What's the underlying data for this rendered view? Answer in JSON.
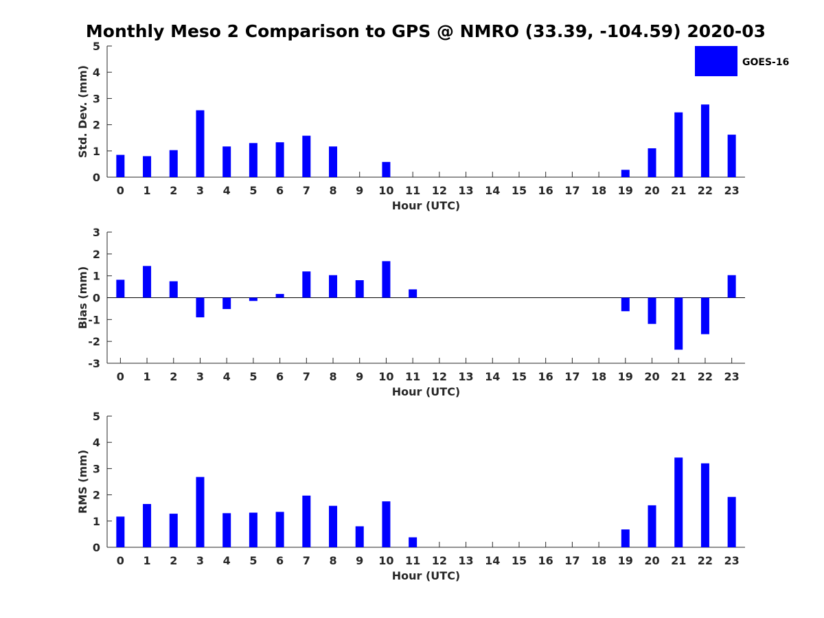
{
  "figure": {
    "title": "Monthly Meso 2 Comparison to GPS @ NMRO (33.39, -104.59) 2020-03",
    "legend": {
      "label": "GOES-16",
      "color": "#0000ff",
      "position": "top-right"
    }
  },
  "chart_data": [
    {
      "type": "bar",
      "ylabel": "Std. Dev. (mm)",
      "xlabel": "Hour (UTC)",
      "ylim": [
        0,
        5
      ],
      "yticks": [
        0,
        1,
        2,
        3,
        4,
        5
      ],
      "categories": [
        "0",
        "1",
        "2",
        "3",
        "4",
        "5",
        "6",
        "7",
        "8",
        "9",
        "10",
        "11",
        "12",
        "13",
        "14",
        "15",
        "16",
        "17",
        "18",
        "19",
        "20",
        "21",
        "22",
        "23"
      ],
      "series": [
        {
          "name": "GOES-16",
          "color": "#0000ff",
          "values": [
            0.85,
            0.8,
            1.03,
            2.55,
            1.17,
            1.3,
            1.33,
            1.58,
            1.17,
            null,
            0.58,
            null,
            null,
            null,
            null,
            null,
            null,
            null,
            null,
            0.28,
            1.1,
            2.47,
            2.77,
            1.62
          ]
        }
      ]
    },
    {
      "type": "bar",
      "ylabel": "Bias (mm)",
      "xlabel": "Hour (UTC)",
      "ylim": [
        -3,
        3
      ],
      "yticks": [
        -3,
        -2,
        -1,
        0,
        1,
        2,
        3
      ],
      "zero_line": true,
      "categories": [
        "0",
        "1",
        "2",
        "3",
        "4",
        "5",
        "6",
        "7",
        "8",
        "9",
        "10",
        "11",
        "12",
        "13",
        "14",
        "15",
        "16",
        "17",
        "18",
        "19",
        "20",
        "21",
        "22",
        "23"
      ],
      "series": [
        {
          "name": "GOES-16",
          "color": "#0000ff",
          "values": [
            0.82,
            1.45,
            0.75,
            -0.9,
            -0.52,
            -0.15,
            0.17,
            1.2,
            1.03,
            0.8,
            1.67,
            0.38,
            null,
            null,
            null,
            null,
            null,
            null,
            null,
            -0.62,
            -1.2,
            -2.38,
            -1.67,
            1.03
          ]
        }
      ]
    },
    {
      "type": "bar",
      "ylabel": "RMS (mm)",
      "xlabel": "Hour (UTC)",
      "ylim": [
        0,
        5
      ],
      "yticks": [
        0,
        1,
        2,
        3,
        4,
        5
      ],
      "categories": [
        "0",
        "1",
        "2",
        "3",
        "4",
        "5",
        "6",
        "7",
        "8",
        "9",
        "10",
        "11",
        "12",
        "13",
        "14",
        "15",
        "16",
        "17",
        "18",
        "19",
        "20",
        "21",
        "22",
        "23"
      ],
      "series": [
        {
          "name": "GOES-16",
          "color": "#0000ff",
          "values": [
            1.17,
            1.65,
            1.28,
            2.68,
            1.3,
            1.32,
            1.35,
            1.97,
            1.58,
            0.8,
            1.75,
            0.38,
            null,
            null,
            null,
            null,
            null,
            null,
            null,
            0.68,
            1.6,
            3.42,
            3.2,
            1.92
          ]
        }
      ]
    }
  ]
}
